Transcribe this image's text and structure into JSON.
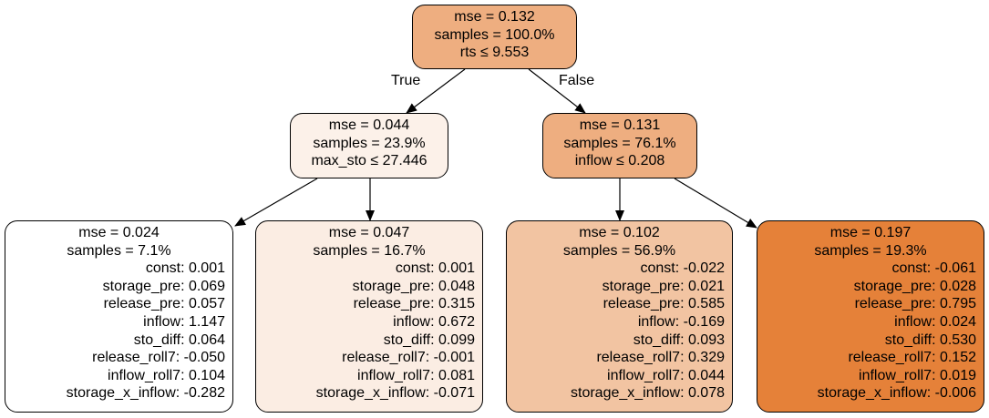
{
  "edge_labels": {
    "true": "True",
    "false": "False"
  },
  "nodes": {
    "root": {
      "color": "#eeae80",
      "lines": [
        "mse = 0.132",
        "samples = 100.0%",
        "rts ≤ 9.553"
      ]
    },
    "left": {
      "color": "#fcf1e9",
      "lines": [
        "mse = 0.044",
        "samples = 23.9%",
        "max_sto ≤ 27.446"
      ]
    },
    "right": {
      "color": "#eeae80",
      "lines": [
        "mse = 0.131",
        "samples = 76.1%",
        "inflow ≤ 0.208"
      ]
    },
    "leaf1": {
      "color": "#ffffff",
      "header": [
        "mse = 0.024",
        "samples = 7.1%"
      ],
      "coefs": [
        "const: 0.001",
        "storage_pre: 0.069",
        "release_pre: 0.057",
        "inflow: 1.147",
        "sto_diff: 0.064",
        "release_roll7: -0.050",
        "inflow_roll7: 0.104",
        "storage_x_inflow: -0.282"
      ]
    },
    "leaf2": {
      "color": "#fbede3",
      "header": [
        "mse = 0.047",
        "samples = 16.7%"
      ],
      "coefs": [
        "const: 0.001",
        "storage_pre: 0.048",
        "release_pre: 0.315",
        "inflow: 0.672",
        "sto_diff: 0.099",
        "release_roll7: -0.001",
        "inflow_roll7: 0.081",
        "storage_x_inflow: -0.071"
      ]
    },
    "leaf3": {
      "color": "#f2c4a2",
      "header": [
        "mse = 0.102",
        "samples = 56.9%"
      ],
      "coefs": [
        "const: -0.022",
        "storage_pre: 0.021",
        "release_pre: 0.585",
        "inflow: -0.169",
        "sto_diff: 0.093",
        "release_roll7: 0.329",
        "inflow_roll7: 0.044",
        "storage_x_inflow: 0.078"
      ]
    },
    "leaf4": {
      "color": "#e58139",
      "header": [
        "mse = 0.197",
        "samples = 19.3%"
      ],
      "coefs": [
        "const: -0.061",
        "storage_pre: 0.028",
        "release_pre: 0.795",
        "inflow: 0.024",
        "sto_diff: 0.530",
        "release_roll7: 0.152",
        "inflow_roll7: 0.019",
        "storage_x_inflow: -0.006"
      ]
    }
  }
}
